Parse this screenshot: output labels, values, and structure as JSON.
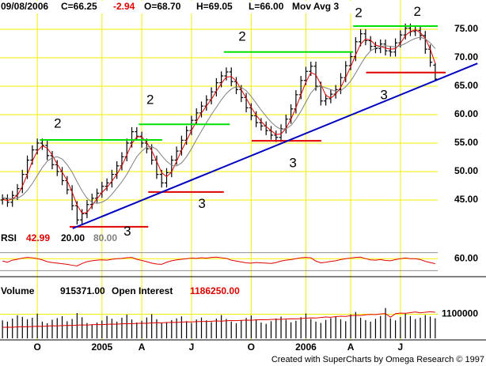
{
  "chart_data": [
    {
      "type": "ohlc",
      "date": "09/08/2006",
      "close_label": "C=66.25",
      "change": "-2.94",
      "open_label": "O=68.70",
      "high_label": "H=69.05",
      "low_label": "L=66.00",
      "indicator": "Mov Avg 3",
      "categories": [
        null,
        null,
        null,
        null,
        null,
        null,
        null,
        "O",
        null,
        null,
        null,
        null,
        null,
        null,
        null,
        null,
        null,
        null,
        null,
        null,
        "2005",
        null,
        null,
        null,
        null,
        null,
        null,
        null,
        "A",
        null,
        null,
        null,
        null,
        null,
        null,
        null,
        null,
        null,
        "J",
        null,
        null,
        null,
        null,
        null,
        null,
        null,
        null,
        null,
        null,
        null,
        "O",
        null,
        null,
        null,
        null,
        null,
        null,
        null,
        null,
        null,
        null,
        "2006",
        null,
        null,
        null,
        null,
        null,
        null,
        null,
        null,
        "A",
        null,
        null,
        null,
        null,
        null,
        null,
        null,
        null,
        null,
        "J",
        null,
        null,
        null,
        null,
        null,
        null,
        null
      ],
      "color": "#000000",
      "open": [
        45.0,
        45.2,
        44.6,
        45.8,
        47.0,
        49.5,
        52.0,
        53.8,
        55.0,
        54.6,
        52.8,
        51.2,
        50.0,
        48.4,
        46.8,
        44.0,
        41.5,
        42.6,
        44.2,
        45.3,
        46.2,
        47.4,
        48.0,
        49.5,
        51.0,
        52.6,
        55.0,
        57.0,
        56.2,
        55.0,
        54.0,
        52.0,
        49.5,
        48.0,
        49.8,
        52.0,
        53.6,
        55.5,
        57.2,
        59.0,
        60.3,
        61.5,
        62.6,
        64.0,
        65.6,
        66.8,
        67.5,
        65.8,
        64.4,
        63.0,
        61.2,
        59.8,
        58.6,
        58.0,
        57.2,
        56.4,
        56.0,
        57.5,
        59.2,
        61.0,
        63.5,
        66.0,
        67.6,
        68.5,
        65.0,
        62.4,
        62.8,
        63.6,
        64.4,
        66.5,
        68.6,
        70.2,
        72.8,
        74.2,
        73.0,
        72.0,
        71.6,
        72.4,
        71.2,
        71.0,
        72.6,
        74.0,
        75.2,
        74.6,
        74.8,
        73.9,
        71.5,
        68.7
      ],
      "high": [
        46.0,
        46.0,
        46.6,
        47.8,
        50.3,
        52.8,
        54.6,
        55.8,
        55.8,
        55.4,
        53.6,
        52.0,
        50.8,
        49.2,
        47.6,
        44.8,
        43.4,
        45.0,
        46.1,
        47.0,
        48.2,
        48.8,
        50.3,
        51.8,
        53.4,
        55.8,
        57.8,
        57.8,
        57.0,
        55.8,
        54.8,
        52.8,
        50.3,
        50.6,
        52.8,
        54.4,
        56.3,
        58.0,
        59.8,
        61.1,
        62.3,
        63.4,
        64.8,
        66.4,
        67.6,
        68.3,
        68.3,
        66.6,
        65.2,
        63.8,
        62.0,
        60.6,
        59.4,
        58.8,
        58.0,
        57.2,
        58.3,
        60.0,
        61.8,
        64.3,
        66.8,
        68.4,
        69.3,
        69.3,
        65.8,
        63.6,
        64.4,
        65.2,
        67.3,
        69.4,
        71.0,
        73.6,
        75.0,
        75.0,
        73.8,
        72.8,
        73.2,
        73.2,
        72.0,
        73.4,
        74.8,
        76.0,
        76.0,
        75.6,
        75.6,
        74.7,
        72.3,
        69.05
      ],
      "low": [
        44.2,
        43.8,
        43.8,
        45.0,
        46.2,
        48.7,
        51.2,
        53.0,
        53.8,
        52.0,
        50.4,
        49.2,
        47.6,
        46.0,
        43.2,
        40.7,
        40.7,
        41.8,
        43.4,
        44.5,
        45.4,
        46.6,
        47.2,
        48.7,
        50.2,
        51.8,
        54.2,
        55.4,
        54.2,
        53.2,
        51.2,
        48.7,
        47.2,
        47.2,
        49.0,
        51.2,
        52.8,
        54.7,
        56.4,
        58.2,
        59.5,
        60.7,
        61.8,
        63.2,
        64.8,
        66.0,
        65.0,
        63.6,
        62.2,
        60.4,
        59.0,
        57.8,
        57.2,
        56.4,
        55.6,
        55.2,
        55.2,
        56.7,
        58.4,
        60.2,
        62.7,
        65.2,
        66.8,
        64.2,
        61.6,
        61.6,
        62.0,
        62.8,
        63.6,
        65.7,
        67.8,
        69.4,
        72.0,
        72.2,
        71.2,
        70.8,
        70.8,
        70.4,
        70.2,
        70.2,
        71.8,
        73.2,
        73.8,
        73.8,
        73.1,
        70.7,
        68.4,
        66.0
      ],
      "close": [
        45.2,
        44.6,
        45.8,
        47.0,
        49.5,
        52.0,
        53.8,
        55.0,
        54.6,
        52.8,
        51.2,
        50.0,
        48.4,
        46.8,
        44.0,
        41.5,
        42.6,
        44.2,
        45.3,
        46.2,
        47.4,
        48.0,
        49.5,
        51.0,
        52.6,
        55.0,
        57.0,
        56.2,
        55.0,
        54.0,
        52.0,
        49.5,
        48.0,
        49.8,
        52.0,
        53.6,
        55.5,
        57.2,
        59.0,
        60.3,
        61.5,
        62.6,
        64.0,
        65.6,
        66.8,
        67.5,
        65.8,
        64.4,
        63.0,
        61.2,
        59.8,
        58.6,
        58.0,
        57.2,
        56.4,
        56.0,
        57.5,
        59.2,
        61.0,
        63.5,
        66.0,
        67.6,
        68.5,
        65.0,
        62.4,
        62.8,
        63.6,
        64.4,
        66.5,
        68.6,
        70.2,
        72.8,
        74.2,
        73.0,
        72.0,
        71.6,
        72.4,
        71.2,
        71.0,
        72.6,
        74.0,
        75.2,
        74.6,
        74.8,
        73.9,
        71.5,
        69.2,
        66.25
      ],
      "moving_averages": [
        {
          "color": "#e00000",
          "values": [
            45.1,
            44.9,
            45.2,
            45.8,
            47.4,
            49.5,
            51.8,
            53.6,
            54.5,
            54.1,
            52.9,
            51.3,
            49.9,
            48.4,
            46.4,
            44.1,
            42.7,
            42.8,
            44.0,
            45.2,
            46.3,
            47.2,
            48.3,
            49.5,
            51.0,
            52.9,
            54.9,
            56.1,
            56.1,
            55.1,
            53.7,
            51.8,
            49.8,
            49.1,
            49.9,
            51.8,
            53.7,
            55.4,
            57.2,
            58.8,
            60.3,
            61.5,
            62.7,
            64.1,
            65.5,
            66.6,
            66.7,
            65.9,
            64.4,
            62.9,
            61.3,
            59.9,
            58.8,
            57.9,
            57.2,
            56.5,
            56.6,
            57.6,
            59.2,
            61.2,
            63.5,
            65.7,
            67.4,
            67.0,
            65.3,
            63.4,
            62.9,
            63.6,
            64.8,
            66.5,
            68.4,
            70.5,
            72.4,
            73.3,
            73.1,
            72.2,
            72.0,
            71.7,
            71.5,
            71.6,
            72.5,
            73.9,
            74.6,
            74.9,
            74.4,
            73.4,
            71.5,
            69.0
          ]
        },
        {
          "color": "#808080",
          "values": [
            45.5,
            45.3,
            45.2,
            45.3,
            45.8,
            46.7,
            47.9,
            49.3,
            50.7,
            51.8,
            52.4,
            52.6,
            52.2,
            51.2,
            49.9,
            48.2,
            46.6,
            45.3,
            44.6,
            44.4,
            44.6,
            45.1,
            46.0,
            47.1,
            48.2,
            49.5,
            51.1,
            52.6,
            53.6,
            54.3,
            54.4,
            53.9,
            52.8,
            51.8,
            51.1,
            51.0,
            51.5,
            52.6,
            54.0,
            55.6,
            57.1,
            58.6,
            60.0,
            61.3,
            62.6,
            63.7,
            64.5,
            64.9,
            64.8,
            64.2,
            63.2,
            62.0,
            60.8,
            59.7,
            58.7,
            57.9,
            57.4,
            57.5,
            58.1,
            59.2,
            60.6,
            62.2,
            63.8,
            64.8,
            65.0,
            64.7,
            64.4,
            64.1,
            64.2,
            64.9,
            65.9,
            67.3,
            68.8,
            70.2,
            71.2,
            71.7,
            72.0,
            72.1,
            72.0,
            71.9,
            72.1,
            72.5,
            73.0,
            73.4,
            73.6,
            73.3,
            72.6,
            71.6
          ]
        }
      ],
      "ylim": [
        40,
        80
      ],
      "yticks": [
        {
          "value": 45,
          "label": "45.00"
        },
        {
          "value": 50,
          "label": "50.00"
        },
        {
          "value": 55,
          "label": "55.00"
        },
        {
          "value": 60,
          "label": "60.00"
        },
        {
          "value": 65,
          "label": "65.00"
        },
        {
          "value": 70,
          "label": "70.00"
        },
        {
          "value": 75,
          "label": "75.00"
        }
      ],
      "grid": true,
      "grid_color": "#f0f000",
      "annotations": {
        "labels": [
          {
            "text": "2",
            "x": 11.6,
            "y": 58.3
          },
          {
            "text": "2",
            "x": 30.2,
            "y": 62.5
          },
          {
            "text": "2",
            "x": 48.7,
            "y": 73.6
          },
          {
            "text": "2",
            "x": 72.1,
            "y": 77.8
          },
          {
            "text": "2",
            "x": 83.9,
            "y": 78.0
          },
          {
            "text": "3",
            "x": 25.6,
            "y": 39.4
          },
          {
            "text": "3",
            "x": 40.6,
            "y": 44.2
          },
          {
            "text": "3",
            "x": 58.9,
            "y": 51.4
          },
          {
            "text": "3",
            "x": 77.2,
            "y": 63.3
          }
        ],
        "resistance": {
          "color": "#00e000",
          "levels": [
            {
              "y": 55.55,
              "from": 8,
              "to": 32.6
            },
            {
              "y": 58.3,
              "from": 27.9,
              "to": 46.2
            },
            {
              "y": 71,
              "from": 45,
              "to": 71
            },
            {
              "y": 75.55,
              "from": 71,
              "to": 88
            }
          ]
        },
        "support": {
          "color": "#e00000",
          "levels": [
            {
              "y": 40.3,
              "from": 14,
              "to": 29.8
            },
            {
              "y": 46.4,
              "from": 29.8,
              "to": 45
            },
            {
              "y": 55.4,
              "from": 50.6,
              "to": 64.6
            },
            {
              "y": 67.4,
              "from": 73.6,
              "to": 89.6
            }
          ]
        },
        "trendline": {
          "color": "#0000c0",
          "from": [
            14.6,
            40
          ],
          "to": [
            96,
            69
          ]
        }
      }
    },
    {
      "type": "line",
      "name": "RSI",
      "value_label": "42.99",
      "color": "#e00000",
      "levels": [
        {
          "value": 20,
          "label": "20.00"
        },
        {
          "value": 80,
          "label": "80.00"
        }
      ],
      "values": [
        52,
        48,
        55,
        58,
        62,
        64,
        63,
        60,
        56,
        50,
        47,
        45,
        43,
        41,
        38,
        36,
        44,
        50,
        53,
        55,
        56,
        55,
        58,
        60,
        61,
        63,
        64,
        58,
        54,
        50,
        45,
        42,
        41,
        48,
        53,
        56,
        58,
        60,
        62,
        61,
        63,
        62,
        64,
        65,
        63,
        61,
        55,
        52,
        49,
        46,
        45,
        47,
        46,
        45,
        44,
        47,
        52,
        55,
        57,
        60,
        63,
        64,
        63,
        52,
        46,
        48,
        51,
        53,
        57,
        60,
        62,
        64,
        65,
        60,
        56,
        55,
        57,
        54,
        53,
        57,
        60,
        62,
        60,
        60,
        57,
        51,
        47,
        42.99
      ],
      "ylim": [
        0,
        100
      ],
      "yticks": [
        {
          "value": 60,
          "label": "60.00"
        }
      ]
    },
    {
      "type": "volume",
      "series": [
        {
          "name": "Volume",
          "value_label": "915371.00",
          "color": "#000000",
          "values": [
            820000,
            760000,
            900000,
            1050000,
            980000,
            870000,
            940000,
            1120000,
            760000,
            690000,
            850000,
            920000,
            1010000,
            780000,
            880000,
            1150000,
            960000,
            700000,
            640000,
            720000,
            810000,
            1020000,
            890000,
            760000,
            940000,
            1080000,
            860000,
            720000,
            800000,
            950000,
            1100000,
            870000,
            690000,
            740000,
            830000,
            910000,
            1000000,
            780000,
            700000,
            860000,
            950000,
            820000,
            740000,
            900000,
            1060000,
            880000,
            760000,
            690000,
            810000,
            930000,
            1040000,
            870000,
            720000,
            660000,
            780000,
            900000,
            990000,
            850000,
            730000,
            800000,
            960000,
            1130000,
            880000,
            760000,
            700000,
            840000,
            920000,
            1010000,
            870000,
            780000,
            1090000,
            1200000,
            940000,
            830000,
            760000,
            890000,
            1020000,
            1380000,
            910000,
            820000,
            970000,
            1120000,
            1010000,
            880000,
            940000,
            1060000,
            990000,
            915371
          ]
        },
        {
          "name": "Open Interest",
          "value_label": "1186250.00",
          "color": "#e00000",
          "values": [
            500000,
            510000,
            505000,
            520000,
            530000,
            525000,
            540000,
            550000,
            545000,
            560000,
            570000,
            565000,
            580000,
            590000,
            585000,
            600000,
            610000,
            605000,
            620000,
            630000,
            625000,
            640000,
            650000,
            645000,
            660000,
            670000,
            665000,
            680000,
            690000,
            685000,
            700000,
            710000,
            705000,
            720000,
            730000,
            725000,
            740000,
            750000,
            745000,
            760000,
            770000,
            765000,
            780000,
            790000,
            785000,
            800000,
            810000,
            805000,
            820000,
            830000,
            825000,
            840000,
            850000,
            845000,
            860000,
            870000,
            865000,
            880000,
            890000,
            885000,
            900000,
            920000,
            930000,
            925000,
            950000,
            970000,
            960000,
            990000,
            1010000,
            1000000,
            1030000,
            1050000,
            1040000,
            1070000,
            1090000,
            1080000,
            1110000,
            1130000,
            960000,
            1120000,
            1150000,
            1140000,
            1170000,
            1200000,
            1160000,
            1190000,
            1210000,
            1186250
          ]
        }
      ],
      "ylim": [
        0,
        1800000
      ],
      "yticks": [
        1100000
      ]
    }
  ],
  "footer": "Created with SuperCharts by Omega Research © 1997"
}
